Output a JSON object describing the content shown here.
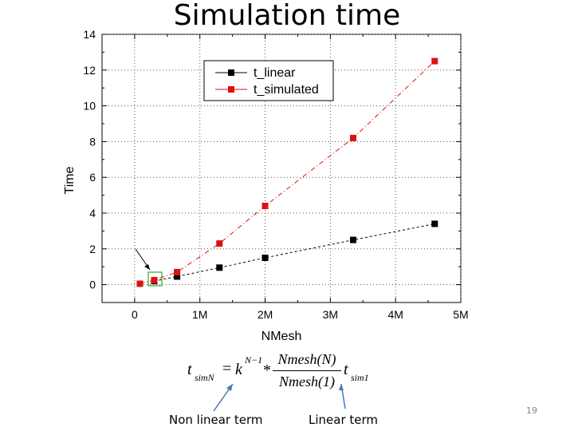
{
  "slide": {
    "title": "Simulation time",
    "page_number": "19"
  },
  "chart_data": {
    "type": "line",
    "title": "",
    "xlabel": "NMesh",
    "ylabel": "Time",
    "xlim": [
      -500000,
      5000000
    ],
    "ylim": [
      -1,
      14
    ],
    "x_ticks": [
      0,
      1000000,
      2000000,
      3000000,
      4000000,
      5000000
    ],
    "x_tick_labels": [
      "0",
      "1M",
      "2M",
      "3M",
      "4M",
      "5M"
    ],
    "y_ticks": [
      0,
      2,
      4,
      6,
      8,
      10,
      12,
      14
    ],
    "y_tick_labels": [
      "0",
      "2",
      "4",
      "6",
      "8",
      "10",
      "12",
      "14"
    ],
    "grid": true,
    "legend_position": "top-right",
    "series": [
      {
        "name": "t_linear",
        "color": "#000000",
        "x": [
          300000,
          650000,
          1300000,
          2000000,
          3350000,
          4600000
        ],
        "y": [
          0.2,
          0.45,
          0.95,
          1.5,
          2.5,
          3.4
        ]
      },
      {
        "name": "t_simulated",
        "color": "#dd1111",
        "x": [
          80000,
          300000,
          650000,
          1300000,
          2000000,
          3350000,
          4600000
        ],
        "y": [
          0.05,
          0.25,
          0.7,
          2.3,
          4.4,
          8.2,
          12.5
        ]
      }
    ]
  },
  "equation": {
    "lhs": "t",
    "lhs_sub": "simN",
    "equals": "=",
    "k": "k",
    "exponent": "N−1",
    "times": "*",
    "numerator": "Nmesh(N)",
    "denominator": "Nmesh(1)",
    "rhs": "t",
    "rhs_sub": "sim1"
  },
  "annotations": {
    "nonlinear": "Non linear term",
    "linear": "Linear term"
  }
}
